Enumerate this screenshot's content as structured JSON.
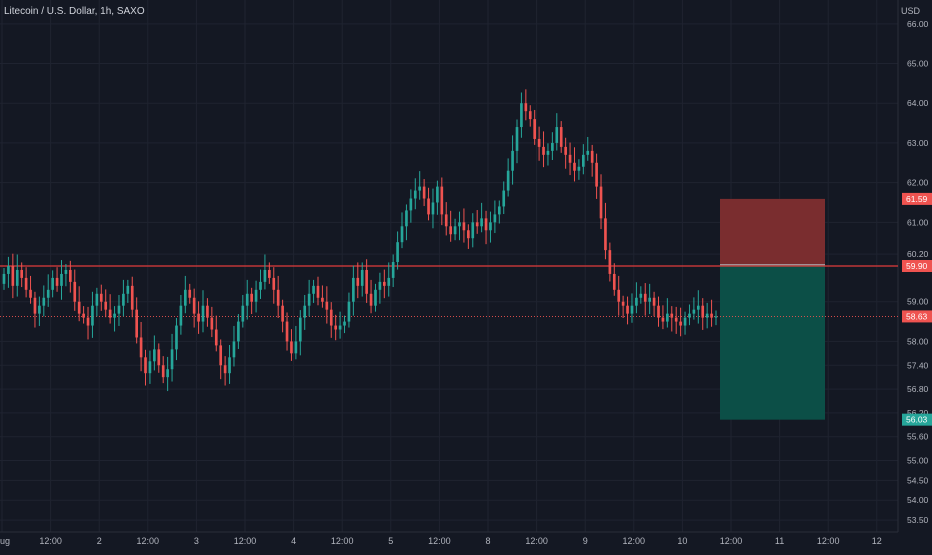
{
  "header": {
    "title": "Litecoin / U.S. Dollar, 1h, SAXO"
  },
  "chart_data": {
    "type": "candlestick",
    "currency": "USD",
    "ylim": [
      53.2,
      66.6
    ],
    "y_ticks": [
      "66.00",
      "65.00",
      "64.00",
      "63.00",
      "62.00",
      "61.00",
      "60.20",
      "59.00",
      "58.00",
      "57.40",
      "56.80",
      "56.20",
      "55.60",
      "55.00",
      "54.50",
      "54.00",
      "53.50"
    ],
    "x_ticks": [
      "Aug",
      "12:00",
      "2",
      "12:00",
      "3",
      "12:00",
      "4",
      "12:00",
      "5",
      "12:00",
      "8",
      "12:00",
      "9",
      "12:00",
      "10",
      "12:00",
      "11",
      "12:00",
      "12"
    ],
    "closes": [
      59.7,
      59.9,
      59.4,
      59.8,
      59.6,
      59.3,
      59.1,
      58.7,
      58.9,
      59.1,
      59.3,
      59.6,
      59.4,
      59.7,
      59.8,
      59.5,
      59.0,
      58.7,
      58.6,
      58.4,
      58.9,
      59.2,
      59.0,
      58.8,
      58.6,
      58.7,
      58.9,
      59.2,
      59.4,
      58.8,
      58.1,
      57.6,
      57.2,
      57.5,
      57.8,
      57.4,
      57.1,
      57.3,
      57.8,
      58.4,
      58.9,
      59.3,
      59.1,
      58.7,
      58.5,
      58.9,
      58.6,
      58.3,
      57.9,
      57.4,
      57.2,
      57.6,
      58.0,
      58.5,
      58.9,
      59.2,
      59.0,
      59.3,
      59.5,
      59.8,
      59.6,
      59.3,
      58.9,
      58.5,
      58.0,
      57.7,
      58.0,
      58.6,
      58.9,
      59.2,
      59.4,
      59.1,
      59.0,
      58.8,
      58.4,
      58.3,
      58.4,
      58.5,
      59.0,
      59.6,
      59.4,
      59.8,
      59.2,
      58.9,
      59.3,
      59.5,
      59.4,
      59.6,
      60.0,
      60.5,
      60.9,
      61.3,
      61.6,
      61.8,
      61.9,
      61.6,
      61.2,
      61.5,
      61.9,
      61.2,
      60.9,
      60.7,
      60.9,
      61.0,
      60.8,
      60.6,
      61.0,
      60.9,
      61.1,
      60.8,
      61.0,
      61.2,
      61.4,
      61.8,
      62.3,
      62.8,
      63.4,
      64.0,
      63.8,
      63.6,
      63.1,
      62.9,
      62.7,
      62.8,
      63.0,
      63.4,
      62.9,
      62.7,
      62.5,
      62.3,
      62.4,
      62.7,
      62.8,
      62.5,
      61.9,
      61.1,
      60.3,
      59.7,
      59.3,
      59.0,
      58.9,
      58.7,
      58.9,
      59.1,
      59.2,
      59.0,
      59.1,
      58.9,
      58.6,
      58.5,
      58.7,
      58.6,
      58.5,
      58.4,
      58.6,
      58.7,
      58.8,
      58.9,
      58.6,
      58.7,
      58.6,
      58.63
    ],
    "opens_offset": 0.25,
    "price_levels": {
      "stop_loss": {
        "value": 61.59,
        "label": "61.59"
      },
      "entry": {
        "value": 59.93,
        "label": "59.93"
      },
      "resistance": {
        "value": 59.9,
        "label": "59.90"
      },
      "last_price": {
        "value": 58.63,
        "label": "58.63"
      },
      "take_profit": {
        "value": 56.03,
        "label": "56.03"
      }
    },
    "colors": {
      "background": "#141823",
      "up": "#26a69a",
      "down": "#ef5350",
      "grid": "#1f2330",
      "axis_text": "#b2b5be",
      "risk_zone": "#7a2d2f",
      "reward_zone": "#0c4f47",
      "level_line": "#e03b3b"
    },
    "grid": true
  }
}
